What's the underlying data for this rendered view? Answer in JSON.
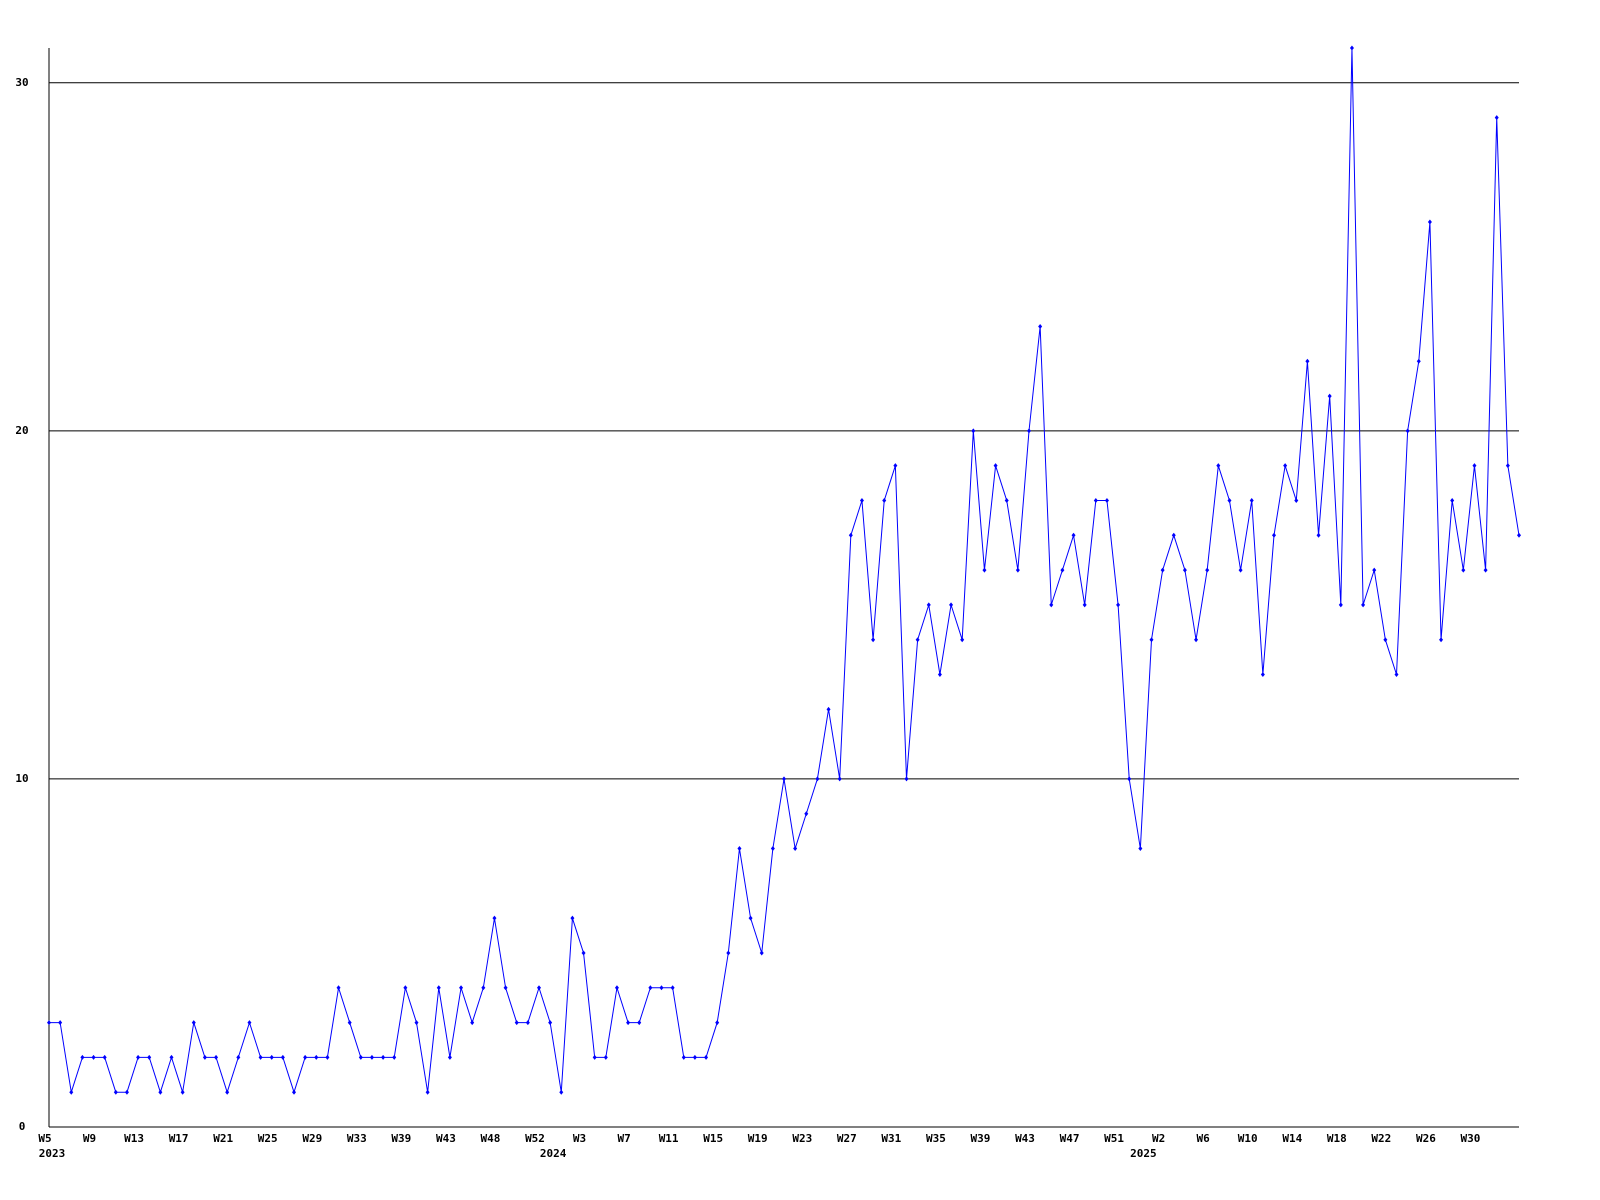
{
  "chart_data": {
    "type": "line",
    "categories": [
      "W5",
      null,
      null,
      null,
      "W9",
      null,
      null,
      null,
      "W13",
      null,
      null,
      null,
      "W17",
      null,
      null,
      null,
      "W21",
      null,
      null,
      null,
      "W25",
      null,
      null,
      null,
      "W29",
      null,
      null,
      null,
      "W33",
      null,
      null,
      null,
      "W39",
      null,
      null,
      null,
      "W43",
      null,
      null,
      null,
      "W48",
      null,
      null,
      null,
      "W52",
      null,
      null,
      null,
      "W3",
      null,
      null,
      null,
      "W7",
      null,
      null,
      null,
      "W11",
      null,
      null,
      null,
      "W15",
      null,
      null,
      null,
      "W19",
      null,
      null,
      null,
      "W23",
      null,
      null,
      null,
      "W27",
      null,
      null,
      null,
      "W31",
      null,
      null,
      null,
      "W35",
      null,
      null,
      null,
      "W39",
      null,
      null,
      null,
      "W43",
      null,
      null,
      null,
      "W47",
      null,
      null,
      null,
      "W51",
      null,
      null,
      null,
      "W2",
      null,
      null,
      null,
      "W6",
      null,
      null,
      null,
      "W10",
      null,
      null,
      null,
      "W14",
      null,
      null,
      null,
      "W18",
      null,
      null,
      null,
      "W22",
      null,
      null,
      null,
      "W26",
      null,
      null,
      null,
      "W30",
      null,
      null,
      null,
      null
    ],
    "years": [
      "2023",
      null,
      null,
      null,
      null,
      null,
      null,
      null,
      null,
      null,
      null,
      null,
      null,
      null,
      null,
      null,
      null,
      null,
      null,
      null,
      null,
      null,
      null,
      null,
      null,
      null,
      null,
      null,
      null,
      null,
      null,
      null,
      null,
      null,
      null,
      null,
      null,
      null,
      null,
      null,
      null,
      null,
      null,
      null,
      null,
      "2024",
      null,
      null,
      null,
      null,
      null,
      null,
      null,
      null,
      null,
      null,
      null,
      null,
      null,
      null,
      null,
      null,
      null,
      null,
      null,
      null,
      null,
      null,
      null,
      null,
      null,
      null,
      null,
      null,
      null,
      null,
      null,
      null,
      null,
      null,
      null,
      null,
      null,
      null,
      null,
      null,
      null,
      null,
      null,
      null,
      null,
      null,
      null,
      null,
      null,
      null,
      null,
      null,
      "2025",
      null,
      null,
      null,
      null,
      null,
      null,
      null,
      null,
      null,
      null,
      null,
      null,
      null,
      null,
      null,
      null,
      null,
      null,
      null,
      null,
      null,
      null,
      null,
      null,
      null,
      null,
      null,
      null,
      null,
      null,
      null,
      null,
      null,
      null,
      null
    ],
    "series": [
      {
        "color": "#0000ff",
        "values": [
          3,
          3,
          1,
          2,
          2,
          2,
          1,
          1,
          2,
          2,
          1,
          2,
          1,
          3,
          2,
          2,
          1,
          2,
          3,
          2,
          2,
          2,
          1,
          2,
          2,
          2,
          4,
          3,
          2,
          2,
          2,
          2,
          4,
          3,
          1,
          4,
          2,
          4,
          3,
          4,
          6,
          4,
          3,
          3,
          4,
          3,
          1,
          6,
          5,
          2,
          2,
          4,
          3,
          3,
          4,
          4,
          4,
          2,
          2,
          2,
          3,
          5,
          8,
          6,
          5,
          8,
          10,
          8,
          9,
          10,
          12,
          10,
          17,
          18,
          14,
          18,
          19,
          10,
          14,
          15,
          13,
          15,
          14,
          20,
          16,
          19,
          18,
          16,
          20,
          23,
          15,
          16,
          17,
          15,
          18,
          18,
          15,
          10,
          8,
          14,
          16,
          17,
          16,
          14,
          16,
          19,
          18,
          16,
          18,
          13,
          17,
          19,
          18,
          22,
          17,
          21,
          15,
          31,
          15,
          16,
          14,
          13,
          20,
          22,
          26,
          14,
          18,
          16,
          19,
          16,
          29,
          19,
          17
        ]
      }
    ],
    "ylim": [
      0,
      31
    ],
    "yticks": [
      0,
      10,
      20,
      30
    ],
    "grid": true
  }
}
